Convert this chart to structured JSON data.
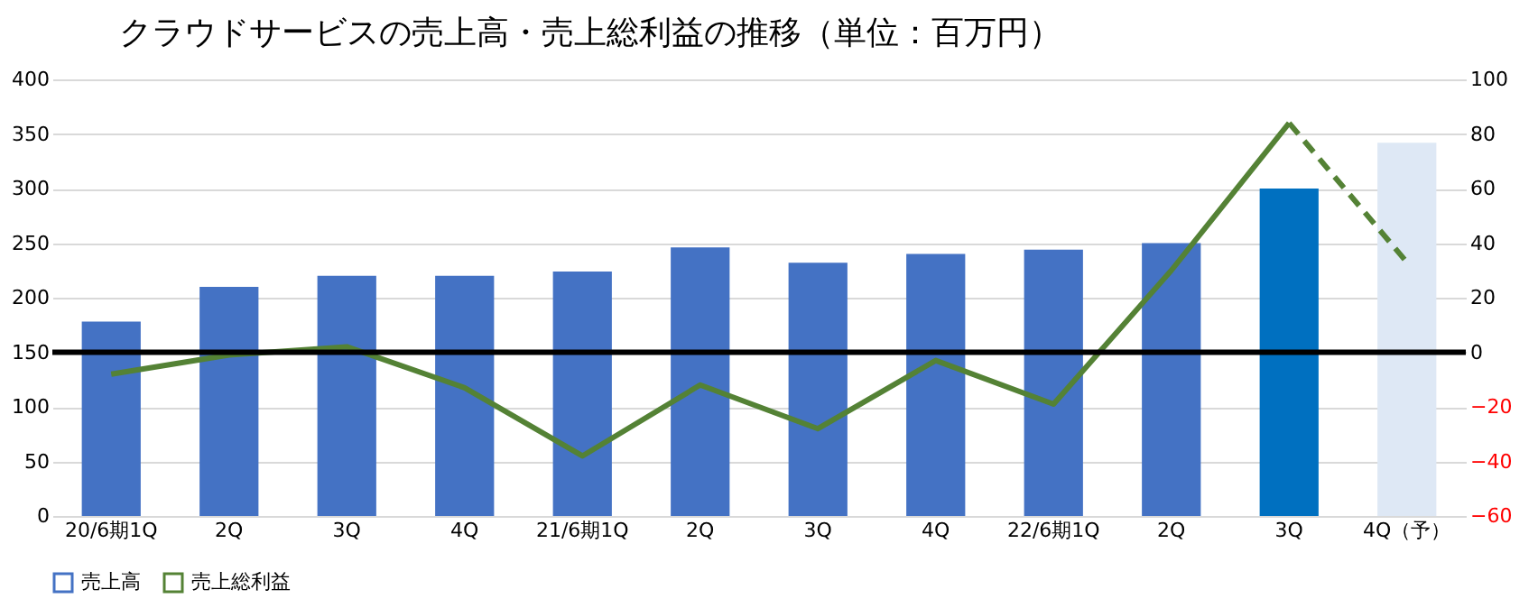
{
  "chart_data": {
    "type": "bar",
    "title": "クラウドサービスの売上高・売上総利益の推移（単位：百万円）",
    "categories": [
      "20/6期1Q",
      "2Q",
      "3Q",
      "4Q",
      "21/6期1Q",
      "2Q",
      "3Q",
      "4Q",
      "22/6期1Q",
      "2Q",
      "3Q",
      "4Q（予）"
    ],
    "series": [
      {
        "name": "売上高",
        "color": "#4472c4",
        "colors": [
          "#4472c4",
          "#4472c4",
          "#4472c4",
          "#4472c4",
          "#4472c4",
          "#4472c4",
          "#4472c4",
          "#4472c4",
          "#4472c4",
          "#4472c4",
          "#0070c0",
          "#dee8f5"
        ],
        "values": [
          178,
          210,
          220,
          220,
          224,
          246,
          232,
          240,
          244,
          250,
          300,
          342
        ]
      },
      {
        "name": "売上総利益",
        "type": "line",
        "axis": "y2",
        "color": "#548235",
        "line_style": "solid",
        "values": [
          -8,
          -1,
          2,
          -13,
          -38,
          -12,
          -28,
          -3,
          -19,
          30,
          84,
          null
        ]
      },
      {
        "type": "line",
        "axis": "y2",
        "color": "#548235",
        "line_style": "dashed",
        "values": [
          null,
          null,
          null,
          null,
          null,
          null,
          null,
          null,
          null,
          null,
          84,
          33
        ]
      }
    ],
    "ylim": [
      0,
      400
    ],
    "yticks": [
      0,
      50,
      100,
      150,
      200,
      250,
      300,
      350,
      400
    ],
    "y2lim": [
      -60,
      100
    ],
    "y2ticks": [
      -60,
      -40,
      -20,
      0,
      20,
      40,
      60,
      80,
      100
    ],
    "ref_lines": [
      {
        "axis": "y2",
        "value": 0,
        "color": "#000000",
        "line_style": "solid"
      }
    ],
    "grid": "y",
    "legend": "bottom"
  }
}
